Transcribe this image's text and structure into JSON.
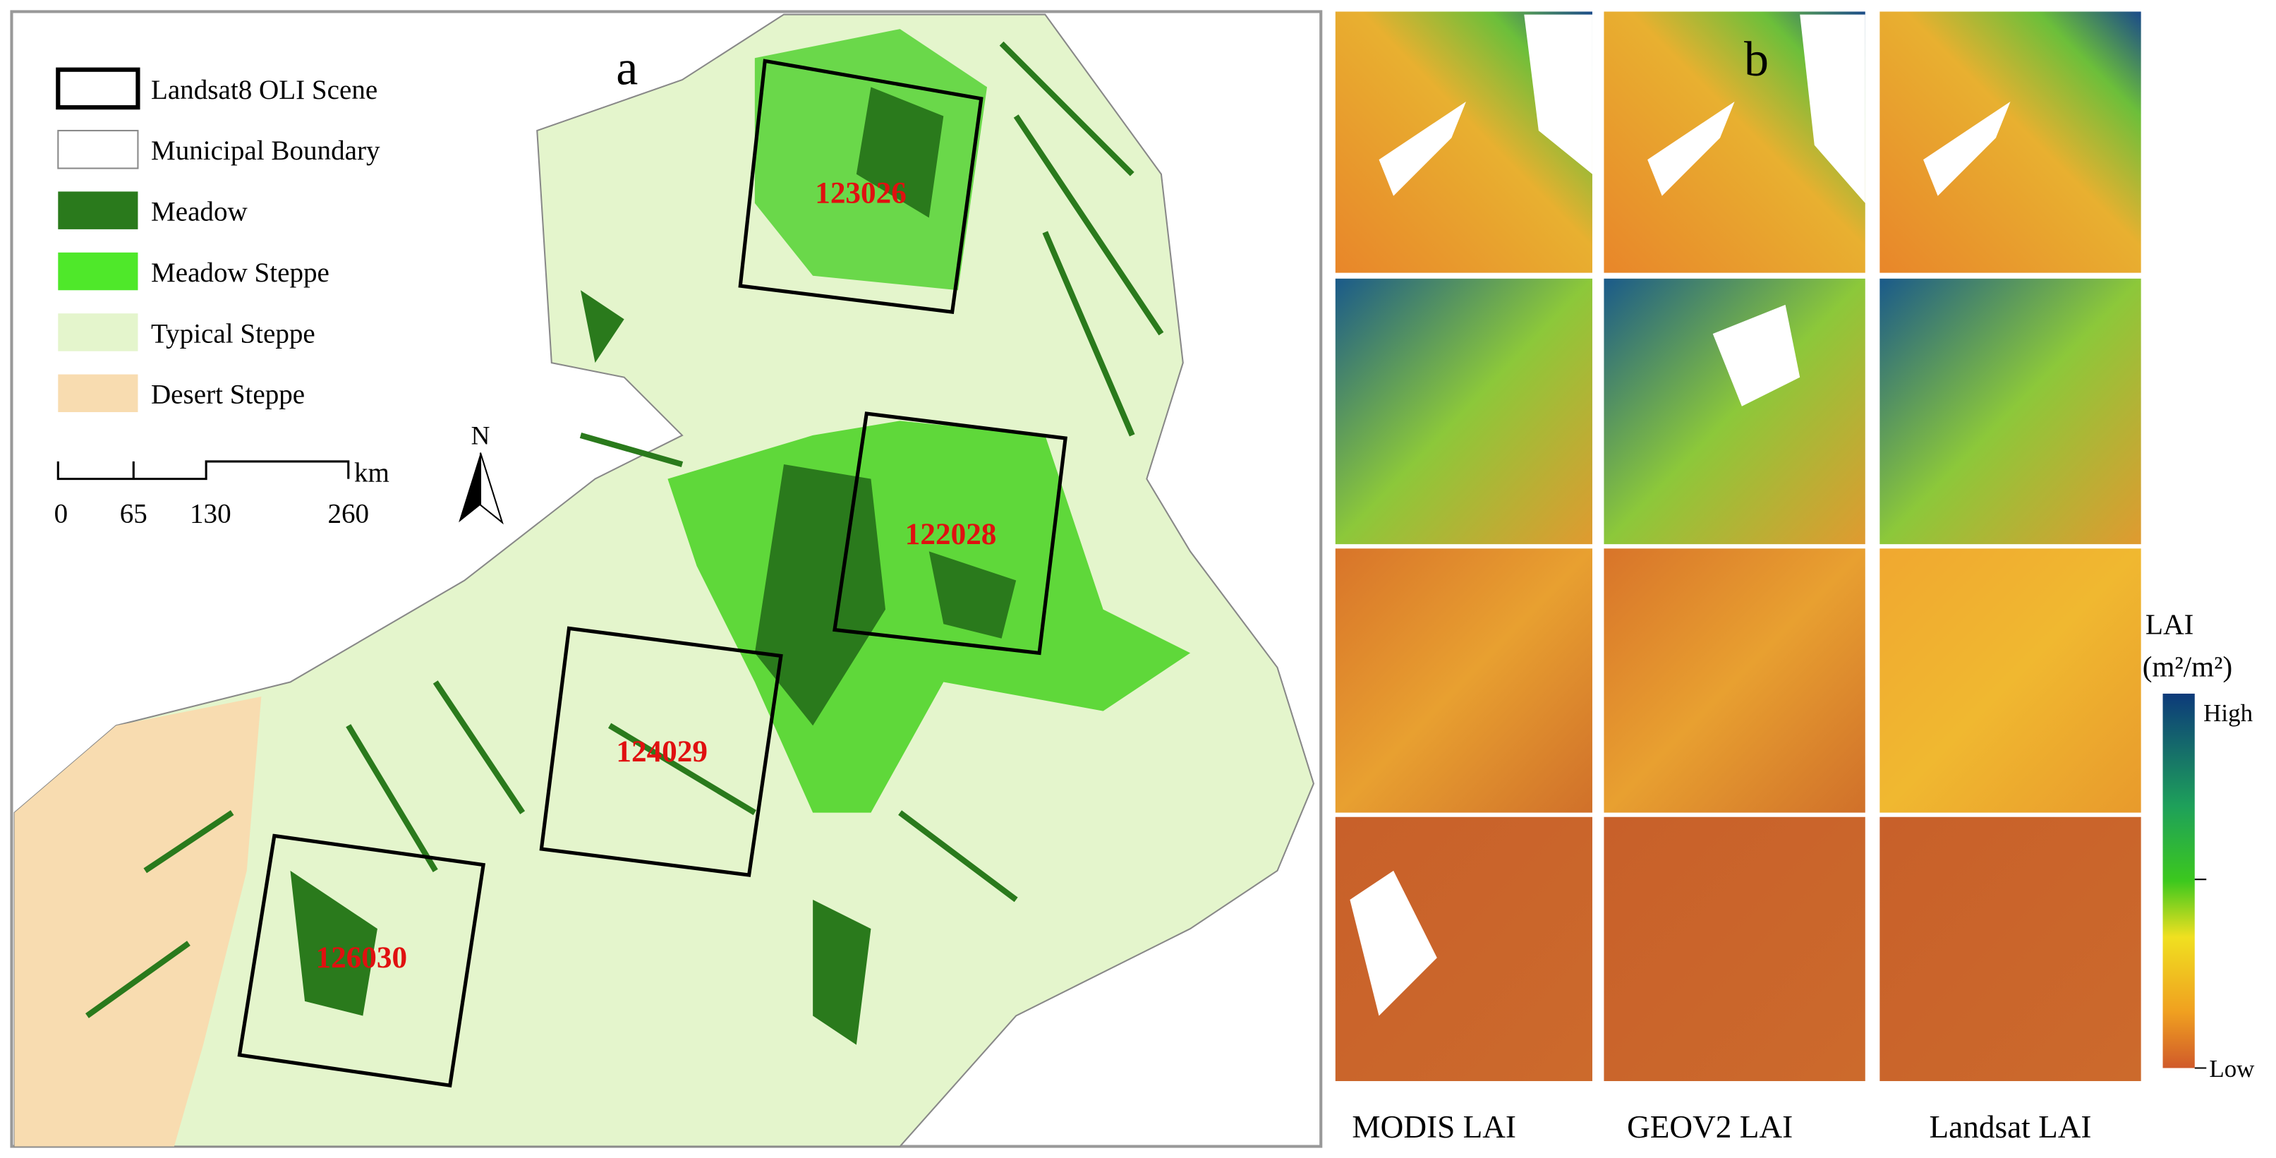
{
  "panel_a": {
    "label": "a",
    "legend": [
      "Landsat8 OLI Scene",
      "Municipal Boundary",
      "Meadow",
      "Meadow Steppe",
      "Typical Steppe",
      "Desert Steppe"
    ],
    "scale_bar": {
      "ticks": [
        "0",
        "65",
        "130",
        "260"
      ],
      "unit": "km"
    },
    "north": "N",
    "scenes": [
      "123026",
      "122028",
      "124029",
      "126030"
    ]
  },
  "panel_b": {
    "label": "b",
    "columns": [
      "MODIS LAI",
      "GEOV2 LAI",
      "Landsat  LAI"
    ],
    "colorbar": {
      "title": "LAI",
      "unit": "(m²/m²)",
      "high": "High",
      "low": "Low"
    }
  }
}
